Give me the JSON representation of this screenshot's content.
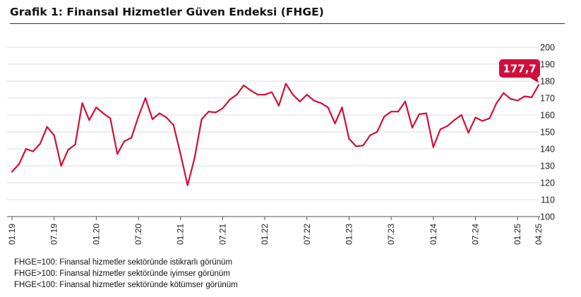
{
  "title": "Grafik 1: Finansal Hizmetler Güven Endeksi (FHGE)",
  "notes": [
    "FHGE=100: Finansal hizmetler sektöründe istikrarlı görünüm",
    "FHGE>100: Finansal hizmetler sektöründe iyimser görünüm",
    "FHGE<100: Finansal hizmetler sektöründe kötümser görünüm"
  ],
  "colors": {
    "line": "#d0103a",
    "callout": "#d0103a",
    "grid": "#dcdcdc",
    "axis": "#555555"
  },
  "chart_data": {
    "type": "line",
    "title": "Grafik 1: Finansal Hizmetler Güven Endeksi (FHGE)",
    "xlabel": "",
    "ylabel": "",
    "ylim": [
      100,
      200
    ],
    "yticks": [
      "100",
      "110",
      "120",
      "130",
      "140",
      "150",
      "160",
      "170",
      "180",
      "190",
      "200"
    ],
    "yaxis_position": "right",
    "grid": "horizontal",
    "xtick_labels": [
      "01.19",
      "07.19",
      "01.20",
      "07.20",
      "01.21",
      "07.21",
      "01.22",
      "07.22",
      "01.23",
      "07.23",
      "01.24",
      "07.24",
      "01.25",
      "04.25"
    ],
    "xtick_months": [
      0,
      6,
      12,
      18,
      24,
      30,
      36,
      42,
      48,
      54,
      60,
      66,
      72,
      75
    ],
    "x_range": [
      0,
      75
    ],
    "callout": {
      "text": "177,7",
      "month": 75,
      "value": 177.7
    },
    "series": [
      {
        "values": [
          126.5,
          131,
          140,
          138.5,
          143,
          153,
          148,
          130,
          139.5,
          142.5,
          167,
          157,
          164.5,
          161,
          158,
          137,
          144.5,
          146.5,
          159,
          170,
          157.5,
          161,
          158.5,
          154,
          137,
          118.5,
          134.5,
          157.5,
          162,
          161.5,
          164,
          169,
          172,
          177.5,
          174.5,
          172,
          172,
          173.5,
          165.5,
          178.5,
          172,
          168,
          172,
          168.5,
          167,
          164.5,
          155,
          164.5,
          146,
          141.5,
          142,
          148,
          150,
          159,
          162,
          162,
          168,
          152.5,
          160.5,
          161,
          141,
          151.5,
          153.5,
          157,
          160,
          149.5,
          158.5,
          156.5,
          158,
          167,
          173,
          169.5,
          168.5,
          171,
          170.5,
          177.7
        ]
      }
    ]
  }
}
